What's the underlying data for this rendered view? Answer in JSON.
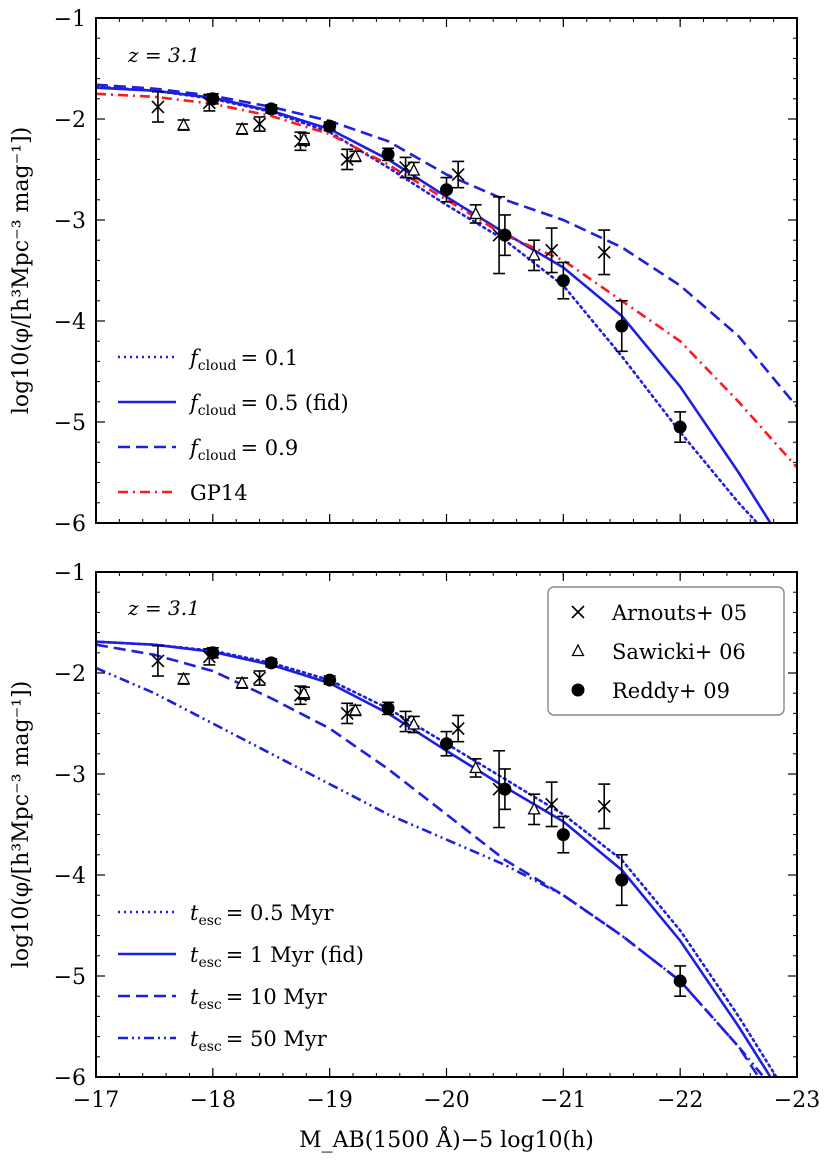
{
  "chart_data": [
    {
      "type": "line",
      "panel": "top",
      "annotation": "z = 3.1",
      "xlabel": "M_AB(1500 Å)−5 log10(h)",
      "ylabel": "log10(φ/[h³Mpc⁻³ mag⁻¹])",
      "xlim": [
        -17,
        -23
      ],
      "ylim": [
        -6,
        -1
      ],
      "xticks": [
        -17,
        -18,
        -19,
        -20,
        -21,
        -22,
        -23
      ],
      "yticks": [
        -6,
        -5,
        -4,
        -3,
        -2,
        -1
      ],
      "xtick_labels": [
        "−17",
        "−18",
        "−19",
        "−20",
        "−21",
        "−22",
        "−23"
      ],
      "ytick_labels": [
        "−6",
        "−5",
        "−4",
        "−3",
        "−2",
        "−1"
      ],
      "show_xtick_labels": false,
      "legend_position": "lower-left",
      "series": [
        {
          "name": "f_cloud = 0.1",
          "legend": "= 0.1",
          "style": "dotted",
          "color": "#1f1fe0",
          "x": [
            -17,
            -17.5,
            -18,
            -18.5,
            -19,
            -19.5,
            -20,
            -20.5,
            -21,
            -21.5,
            -22,
            -22.5,
            -22.7
          ],
          "y": [
            -1.68,
            -1.72,
            -1.8,
            -1.93,
            -2.13,
            -2.48,
            -2.85,
            -3.2,
            -3.65,
            -4.35,
            -5.1,
            -5.8,
            -6.05
          ]
        },
        {
          "name": "f_cloud = 0.5 (fid)",
          "legend": "= 0.5 (fid)",
          "style": "solid",
          "color": "#1f1fe0",
          "x": [
            -17,
            -17.5,
            -18,
            -18.5,
            -19,
            -19.5,
            -20,
            -20.5,
            -21,
            -21.5,
            -22,
            -22.5,
            -22.8
          ],
          "y": [
            -1.69,
            -1.72,
            -1.79,
            -1.92,
            -2.1,
            -2.4,
            -2.77,
            -3.13,
            -3.47,
            -3.95,
            -4.65,
            -5.5,
            -6.05
          ]
        },
        {
          "name": "f_cloud = 0.9",
          "legend": "= 0.9",
          "style": "dashed",
          "color": "#1f1fe0",
          "x": [
            -17,
            -17.5,
            -18,
            -18.5,
            -19,
            -19.5,
            -20,
            -20.5,
            -21,
            -21.5,
            -22,
            -22.5,
            -23
          ],
          "y": [
            -1.66,
            -1.7,
            -1.77,
            -1.88,
            -2.02,
            -2.22,
            -2.55,
            -2.8,
            -3.0,
            -3.27,
            -3.65,
            -4.15,
            -4.85
          ]
        },
        {
          "name": "GP14",
          "legend": "GP14",
          "style": "dashdot",
          "color": "#ff1a1a",
          "x": [
            -17,
            -17.5,
            -18,
            -18.5,
            -19,
            -19.5,
            -20,
            -20.5,
            -21,
            -21.5,
            -22,
            -22.5,
            -23
          ],
          "y": [
            -1.75,
            -1.78,
            -1.85,
            -1.97,
            -2.15,
            -2.45,
            -2.8,
            -3.15,
            -3.4,
            -3.8,
            -4.2,
            -4.8,
            -5.45
          ]
        }
      ]
    },
    {
      "type": "line",
      "panel": "bottom",
      "annotation": "z = 3.1",
      "xlabel": "M_AB(1500 Å)−5 log10(h)",
      "ylabel": "log10(φ/[h³Mpc⁻³ mag⁻¹])",
      "xlim": [
        -17,
        -23
      ],
      "ylim": [
        -6,
        -1
      ],
      "xticks": [
        -17,
        -18,
        -19,
        -20,
        -21,
        -22,
        -23
      ],
      "yticks": [
        -6,
        -5,
        -4,
        -3,
        -2,
        -1
      ],
      "xtick_labels": [
        "−17",
        "−18",
        "−19",
        "−20",
        "−21",
        "−22",
        "−23"
      ],
      "ytick_labels": [
        "−6",
        "−5",
        "−4",
        "−3",
        "−2",
        "−1"
      ],
      "show_xtick_labels": true,
      "legend_position": "lower-left",
      "series": [
        {
          "name": "t_esc = 0.5 Myr",
          "legend": "= 0.5 Myr",
          "style": "dotted",
          "color": "#1f1fe0",
          "x": [
            -17,
            -17.5,
            -18,
            -18.5,
            -19,
            -19.5,
            -20,
            -20.5,
            -21,
            -21.5,
            -22,
            -22.5,
            -22.85
          ],
          "y": [
            -1.69,
            -1.72,
            -1.78,
            -1.9,
            -2.07,
            -2.35,
            -2.7,
            -3.05,
            -3.4,
            -3.85,
            -4.55,
            -5.4,
            -6.05
          ]
        },
        {
          "name": "t_esc = 1 Myr (fid)",
          "legend": "= 1 Myr (fid)",
          "style": "solid",
          "color": "#1f1fe0",
          "x": [
            -17,
            -17.5,
            -18,
            -18.5,
            -19,
            -19.5,
            -20,
            -20.5,
            -21,
            -21.5,
            -22,
            -22.5,
            -22.8
          ],
          "y": [
            -1.69,
            -1.72,
            -1.79,
            -1.92,
            -2.1,
            -2.4,
            -2.77,
            -3.13,
            -3.47,
            -3.95,
            -4.65,
            -5.5,
            -6.05
          ]
        },
        {
          "name": "t_esc = 10 Myr",
          "legend": "= 10 Myr",
          "style": "dashed",
          "color": "#1f1fe0",
          "x": [
            -17,
            -17.5,
            -18,
            -18.5,
            -19,
            -19.5,
            -20,
            -20.5,
            -21,
            -21.5,
            -22,
            -22.5,
            -22.7
          ],
          "y": [
            -1.72,
            -1.82,
            -1.98,
            -2.25,
            -2.55,
            -2.95,
            -3.4,
            -3.85,
            -4.2,
            -4.6,
            -5.05,
            -5.7,
            -6.05
          ]
        },
        {
          "name": "t_esc = 50 Myr",
          "legend": "= 50 Myr",
          "style": "dashdotdot",
          "color": "#1f1fe0",
          "x": [
            -17,
            -17.5,
            -18,
            -18.5,
            -19,
            -19.5,
            -20,
            -20.5,
            -21,
            -21.5,
            -22,
            -22.5,
            -22.75
          ],
          "y": [
            -1.95,
            -2.2,
            -2.5,
            -2.8,
            -3.1,
            -3.4,
            -3.65,
            -3.9,
            -4.2,
            -4.6,
            -5.05,
            -5.7,
            -6.05
          ]
        }
      ]
    }
  ],
  "observations": [
    {
      "name": "Arnouts+ 05",
      "marker": "x",
      "points": [
        {
          "x": -17.53,
          "y": -1.88,
          "err": 0.15
        },
        {
          "x": -17.97,
          "y": -1.84,
          "err": 0.08
        },
        {
          "x": -18.4,
          "y": -2.05,
          "err": 0.07
        },
        {
          "x": -18.75,
          "y": -2.22,
          "err": 0.09
        },
        {
          "x": -19.15,
          "y": -2.4,
          "err": 0.1
        },
        {
          "x": -19.65,
          "y": -2.48,
          "err": 0.1
        },
        {
          "x": -20.1,
          "y": -2.55,
          "err": 0.13
        },
        {
          "x": -20.45,
          "y": -3.15,
          "err": 0.38
        },
        {
          "x": -20.9,
          "y": -3.3,
          "err": 0.22
        },
        {
          "x": -21.35,
          "y": -3.32,
          "err": 0.22
        }
      ]
    },
    {
      "name": "Sawicki+ 06",
      "marker": "triangle",
      "points": [
        {
          "x": -17.75,
          "y": -2.06,
          "err": 0.05
        },
        {
          "x": -18.25,
          "y": -2.1,
          "err": 0.05
        },
        {
          "x": -18.78,
          "y": -2.2,
          "err": 0.06
        },
        {
          "x": -19.22,
          "y": -2.37,
          "err": 0.05
        },
        {
          "x": -19.72,
          "y": -2.51,
          "err": 0.08
        },
        {
          "x": -20.25,
          "y": -2.94,
          "err": 0.09
        },
        {
          "x": -20.75,
          "y": -3.35,
          "err": 0.15
        }
      ]
    },
    {
      "name": "Reddy+ 09",
      "marker": "circle",
      "points": [
        {
          "x": -18.0,
          "y": -1.8,
          "err": 0.05
        },
        {
          "x": -18.5,
          "y": -1.9,
          "err": 0.04
        },
        {
          "x": -19.0,
          "y": -2.07,
          "err": 0.04
        },
        {
          "x": -19.5,
          "y": -2.35,
          "err": 0.06
        },
        {
          "x": -20.0,
          "y": -2.7,
          "err": 0.12
        },
        {
          "x": -20.5,
          "y": -3.15,
          "err": 0.2
        },
        {
          "x": -21.0,
          "y": -3.6,
          "err": 0.18
        },
        {
          "x": -21.5,
          "y": -4.05,
          "err": 0.25
        },
        {
          "x": -22.0,
          "y": -5.05,
          "err": 0.15
        }
      ]
    }
  ],
  "top_legend_prefix": "f",
  "top_legend_sub": "cloud",
  "bottom_legend_prefix": "t",
  "bottom_legend_sub": "esc",
  "obs_legend": [
    "Arnouts+ 05",
    "Sawicki+ 06",
    "Reddy+ 09"
  ]
}
